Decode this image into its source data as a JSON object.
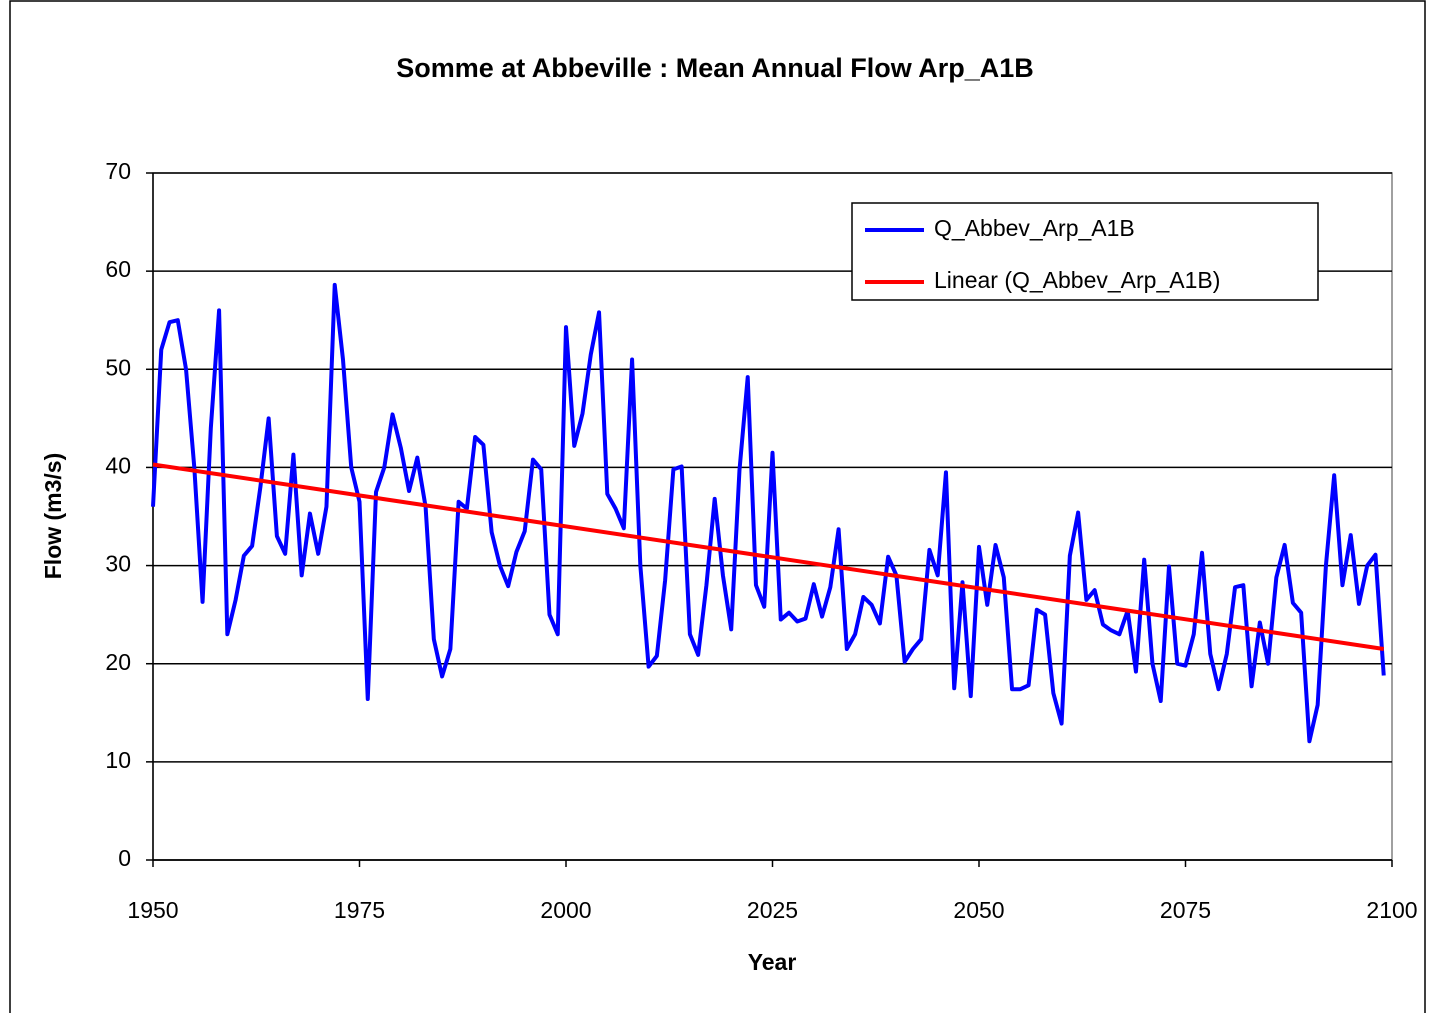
{
  "chart_data": {
    "type": "line",
    "title": "Somme at Abbeville : Mean Annual Flow Arp_A1B",
    "x_label": "Year",
    "y_label": "Flow (m3/s)",
    "xlim": [
      1950,
      2100
    ],
    "xticks": [
      1950,
      1975,
      2000,
      2025,
      2050,
      2075,
      2100
    ],
    "ylim": [
      0,
      70
    ],
    "yticks": [
      0,
      10,
      20,
      30,
      40,
      50,
      60,
      70
    ],
    "grid": true,
    "legend": "top-right",
    "series": [
      {
        "name": "Q_Abbev_Arp_A1B",
        "color": "#0000ff",
        "x": [
          1950,
          1951,
          1952,
          1953,
          1954,
          1955,
          1956,
          1957,
          1958,
          1959,
          1960,
          1961,
          1962,
          1963,
          1964,
          1965,
          1966,
          1967,
          1968,
          1969,
          1970,
          1971,
          1972,
          1973,
          1974,
          1975,
          1976,
          1977,
          1978,
          1979,
          1980,
          1981,
          1982,
          1983,
          1984,
          1985,
          1986,
          1987,
          1988,
          1989,
          1990,
          1991,
          1992,
          1993,
          1994,
          1995,
          1996,
          1997,
          1998,
          1999,
          2000,
          2001,
          2002,
          2003,
          2004,
          2005,
          2006,
          2007,
          2008,
          2009,
          2010,
          2011,
          2012,
          2013,
          2014,
          2015,
          2016,
          2017,
          2018,
          2019,
          2020,
          2021,
          2022,
          2023,
          2024,
          2025,
          2026,
          2027,
          2028,
          2029,
          2030,
          2031,
          2032,
          2033,
          2034,
          2035,
          2036,
          2037,
          2038,
          2039,
          2040,
          2041,
          2042,
          2043,
          2044,
          2045,
          2046,
          2047,
          2048,
          2049,
          2050,
          2051,
          2052,
          2053,
          2054,
          2055,
          2056,
          2057,
          2058,
          2059,
          2060,
          2061,
          2062,
          2063,
          2064,
          2065,
          2066,
          2067,
          2068,
          2069,
          2070,
          2071,
          2072,
          2073,
          2074,
          2075,
          2076,
          2077,
          2078,
          2079,
          2080,
          2081,
          2082,
          2083,
          2084,
          2085,
          2086,
          2087,
          2088,
          2089,
          2090,
          2091,
          2092,
          2093,
          2094,
          2095,
          2096,
          2097,
          2098,
          2099
        ],
        "values": [
          36,
          52,
          54.8,
          55,
          50,
          40,
          26.3,
          44,
          56,
          23,
          26.5,
          31,
          32,
          38,
          45,
          33,
          31.2,
          41.3,
          29,
          35.3,
          31.2,
          36,
          58.6,
          51,
          40,
          36.5,
          16.4,
          37.5,
          40,
          45.4,
          42,
          37.6,
          41,
          36,
          22.5,
          18.7,
          21.5,
          36.5,
          35.8,
          43.1,
          42.3,
          33.4,
          30,
          27.9,
          31.4,
          33.5,
          40.8,
          39.8,
          25,
          23,
          54.3,
          42.2,
          45.5,
          51.5,
          55.8,
          37.3,
          35.8,
          33.8,
          51,
          30,
          19.7,
          20.8,
          28.5,
          39.8,
          40.1,
          23,
          20.9,
          28,
          36.8,
          29,
          23.5,
          39.7,
          49.2,
          28,
          25.8,
          41.5,
          24.5,
          25.2,
          24.3,
          24.6,
          28.1,
          24.8,
          27.8,
          33.7,
          21.5,
          23,
          26.8,
          26,
          24.1,
          30.9,
          29,
          20.2,
          21.5,
          22.5,
          31.6,
          29,
          39.5,
          17.5,
          28.3,
          16.7,
          31.9,
          26,
          32.1,
          28.8,
          17.4,
          17.4,
          17.8,
          25.5,
          25,
          17,
          13.9,
          31,
          35.4,
          26.5,
          27.5,
          24,
          23.4,
          23,
          25.4,
          19.2,
          30.6,
          20,
          16.2,
          29.9,
          20,
          19.8,
          23,
          31.3,
          21,
          17.4,
          21,
          27.8,
          28,
          17.7,
          24.2,
          20,
          28.8,
          32.1,
          26.2,
          25.2,
          12.1,
          15.8,
          30,
          39.2,
          28,
          33.1,
          26.1,
          30,
          31.1,
          18.8
        ]
      },
      {
        "name": "Linear (Q_Abbev_Arp_A1B)",
        "color": "#ff0000",
        "x": [
          1950,
          2099
        ],
        "values": [
          40.3,
          21.5
        ]
      }
    ]
  }
}
